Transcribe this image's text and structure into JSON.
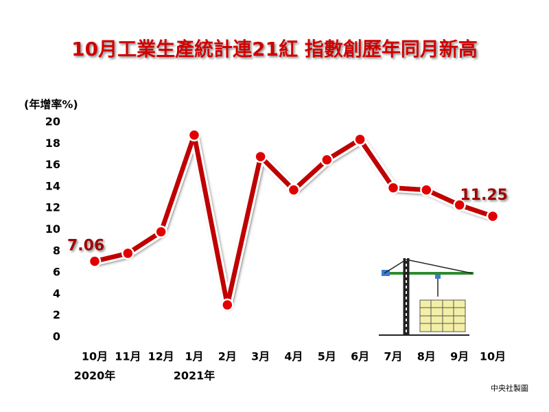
{
  "chart_data": {
    "type": "line",
    "title": "10月工業生產統計連21紅 指數創歷年同月新高",
    "y_label": "(年增率%)",
    "source": "中央社製圖",
    "categories": [
      "10月",
      "11月",
      "12月",
      "1月",
      "2月",
      "3月",
      "4月",
      "5月",
      "6月",
      "7月",
      "8月",
      "9月",
      "10月"
    ],
    "year_labels": [
      "2020年",
      null,
      null,
      "2021年",
      null,
      null,
      null,
      null,
      null,
      null,
      null,
      null,
      null
    ],
    "series": [
      {
        "color": "#c00000",
        "values": [
          7.06,
          7.8,
          9.8,
          18.8,
          3.0,
          16.8,
          13.7,
          16.5,
          18.4,
          13.9,
          13.7,
          12.3,
          11.25
        ],
        "value_labels": [
          "7.06",
          null,
          null,
          null,
          null,
          null,
          null,
          null,
          null,
          null,
          null,
          null,
          "11.25"
        ]
      }
    ],
    "ylim": [
      0,
      20
    ],
    "yticks": [
      0,
      2,
      4,
      6,
      8,
      10,
      12,
      14,
      16,
      18,
      20
    ],
    "grid": false
  }
}
